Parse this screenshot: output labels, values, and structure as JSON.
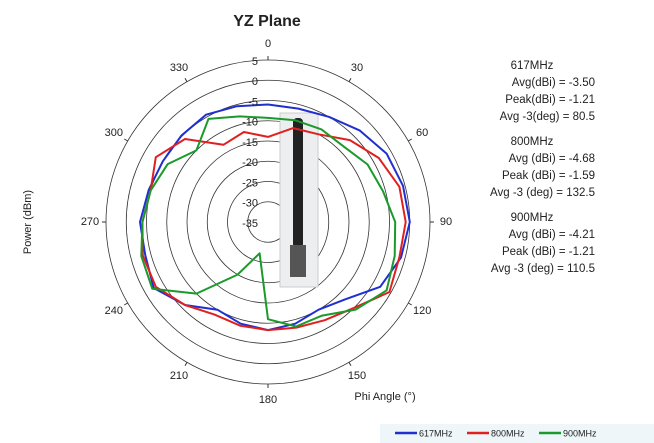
{
  "chart_data": {
    "type": "polar",
    "title": "YZ Plane",
    "raxis_label": "Power (dBm)",
    "theta_label": "Phi Angle (°)",
    "rlim": [
      -35,
      5
    ],
    "rticks": [
      5,
      0,
      -5,
      -10,
      -15,
      -20,
      -25,
      -30,
      -35
    ],
    "thetaticks": [
      0,
      30,
      60,
      90,
      120,
      150,
      180,
      210,
      240,
      270,
      300,
      330
    ],
    "theta": [
      0,
      15,
      30,
      45,
      60,
      75,
      90,
      105,
      120,
      135,
      150,
      165,
      180,
      195,
      210,
      225,
      240,
      255,
      270,
      285,
      300,
      315,
      330,
      345
    ],
    "series": [
      {
        "name": "617MHz",
        "color": "#1f2fd0",
        "values": [
          -6,
          -6,
          -5,
          -3,
          -1.2,
          -0.5,
          0,
          -1,
          -3,
          -8,
          -10,
          -9,
          -8.3,
          -9,
          -10,
          -6,
          -2.4,
          -3.6,
          -3.4,
          -4.5,
          -5,
          -4.8,
          -4.4,
          -5.4
        ]
      },
      {
        "name": "800MHz",
        "color": "#e02020",
        "values": [
          -14,
          -11,
          -10,
          -6.4,
          -3.4,
          -1.4,
          -1,
          -1.4,
          -0.4,
          -5,
          -7,
          -8,
          -8.3,
          -8.5,
          -8.6,
          -6,
          -3,
          -3,
          -4,
          -5,
          -3,
          -6,
          -13,
          -12
        ]
      },
      {
        "name": "900MHz",
        "color": "#1a9a2a",
        "values": [
          -9.3,
          -9,
          -8.6,
          -8.6,
          -6.6,
          -5.6,
          -3.6,
          -2.6,
          -1.2,
          -4.4,
          -8.3,
          -8.3,
          -11,
          -27,
          -20,
          -10,
          -2,
          -2.6,
          -4,
          -5,
          -6.4,
          -10,
          -5.6,
          -8
        ]
      }
    ],
    "annotations": [
      {
        "title": "617MHz",
        "lines": [
          "Avg(dBi) = -3.50",
          "Peak(dBi) = -1.21",
          "Avg -3(deg) = 80.5"
        ]
      },
      {
        "title": "800MHz",
        "lines": [
          "Avg (dBi) =  -4.68",
          "Peak (dBi) =  -1.59",
          "Avg -3 (deg) = 132.5"
        ]
      },
      {
        "title": "900MHz",
        "lines": [
          "Avg (dBi) = -4.21",
          "Peak (dBi) = -1.21",
          "Avg -3 (deg) = 110.5"
        ]
      }
    ]
  }
}
